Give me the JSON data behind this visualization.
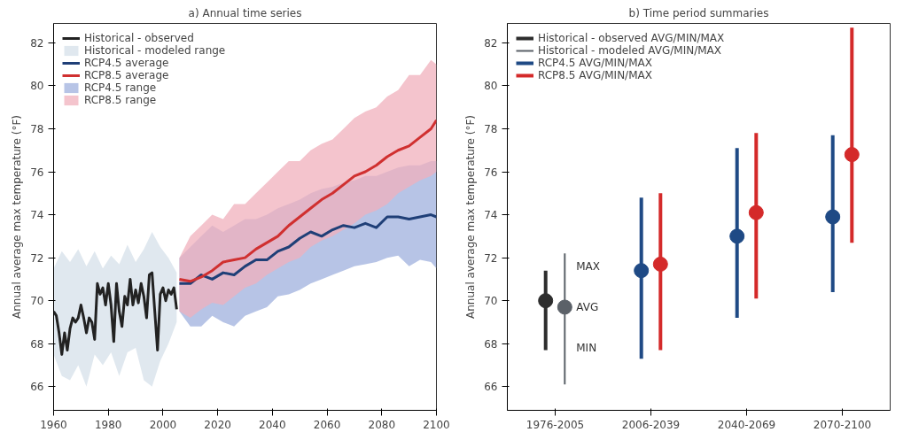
{
  "chart_data": [
    {
      "type": "line",
      "title": "a) Annual time series",
      "ylabel": "Annual average max temperature (°F)",
      "xlim": [
        1960,
        2100
      ],
      "xticks": [
        1960,
        1980,
        2000,
        2020,
        2040,
        2060,
        2080,
        2100
      ],
      "ylim": [
        64.9,
        82.9
      ],
      "yticks": [
        66,
        68,
        70,
        72,
        74,
        76,
        78,
        80,
        82
      ],
      "grid": false,
      "legend": "top left",
      "series": [
        {
          "name": "Historical - observed",
          "type": "line",
          "color": "#222222",
          "x": [
            1960,
            1961,
            1962,
            1963,
            1964,
            1965,
            1966,
            1967,
            1968,
            1969,
            1970,
            1971,
            1972,
            1973,
            1974,
            1975,
            1976,
            1977,
            1978,
            1979,
            1980,
            1981,
            1982,
            1983,
            1984,
            1985,
            1986,
            1987,
            1988,
            1989,
            1990,
            1991,
            1992,
            1993,
            1994,
            1995,
            1996,
            1997,
            1998,
            1999,
            2000,
            2001,
            2002,
            2003,
            2004,
            2005
          ],
          "values": [
            69.5,
            69.3,
            68.5,
            67.5,
            68.5,
            67.7,
            68.7,
            69.2,
            69.0,
            69.2,
            69.8,
            69.2,
            68.5,
            69.2,
            69.0,
            68.2,
            70.8,
            70.3,
            70.6,
            69.8,
            70.8,
            69.8,
            68.1,
            70.8,
            69.5,
            68.8,
            70.2,
            69.8,
            71.0,
            69.8,
            70.5,
            69.9,
            70.8,
            70.2,
            69.2,
            71.2,
            71.3,
            69.5,
            67.7,
            70.3,
            70.6,
            70.0,
            70.5,
            70.3,
            70.6,
            69.6
          ]
        },
        {
          "name": "Historical - modeled range",
          "type": "area",
          "color": "#d6e0ea",
          "x": [
            1960,
            1963,
            1966,
            1969,
            1972,
            1975,
            1978,
            1981,
            1984,
            1987,
            1990,
            1993,
            1996,
            1999,
            2002,
            2005
          ],
          "values": [
            null,
            null,
            null,
            null,
            null,
            null,
            null,
            null,
            null,
            null,
            null,
            null,
            null,
            null,
            null,
            null
          ],
          "lower": [
            67.5,
            66.5,
            66.3,
            67.0,
            66.0,
            67.5,
            67.0,
            67.6,
            66.5,
            67.6,
            67.8,
            66.3,
            66.0,
            67.2,
            68.0,
            69.0
          ],
          "upper": [
            71.5,
            72.3,
            71.8,
            72.4,
            71.6,
            72.3,
            71.5,
            72.1,
            71.7,
            72.6,
            71.8,
            72.4,
            73.2,
            72.5,
            72.0,
            71.3
          ]
        },
        {
          "name": "RCP4.5 average",
          "type": "line",
          "color": "#1f3f77",
          "x": [
            2006,
            2010,
            2014,
            2018,
            2022,
            2026,
            2030,
            2034,
            2038,
            2042,
            2046,
            2050,
            2054,
            2058,
            2062,
            2066,
            2070,
            2074,
            2078,
            2082,
            2086,
            2090,
            2094,
            2098,
            2100
          ],
          "values": [
            70.8,
            70.8,
            71.2,
            71.0,
            71.3,
            71.2,
            71.6,
            71.9,
            71.9,
            72.3,
            72.5,
            72.9,
            73.2,
            73.0,
            73.3,
            73.5,
            73.4,
            73.6,
            73.4,
            73.9,
            73.9,
            73.8,
            73.9,
            74.0,
            73.9
          ]
        },
        {
          "name": "RCP8.5 average",
          "type": "line",
          "color": "#d03030",
          "x": [
            2006,
            2010,
            2014,
            2018,
            2022,
            2026,
            2030,
            2034,
            2038,
            2042,
            2046,
            2050,
            2054,
            2058,
            2062,
            2066,
            2070,
            2074,
            2078,
            2082,
            2086,
            2090,
            2094,
            2098,
            2100
          ],
          "values": [
            71.0,
            70.9,
            71.1,
            71.4,
            71.8,
            71.9,
            72.0,
            72.4,
            72.7,
            73.0,
            73.5,
            73.9,
            74.3,
            74.7,
            75.0,
            75.4,
            75.8,
            76.0,
            76.3,
            76.7,
            77.0,
            77.2,
            77.6,
            78.0,
            78.4
          ]
        },
        {
          "name": "RCP4.5 range",
          "type": "area",
          "color": "#9fb0dd",
          "x": [
            2006,
            2010,
            2014,
            2018,
            2022,
            2026,
            2030,
            2034,
            2038,
            2042,
            2046,
            2050,
            2054,
            2058,
            2062,
            2066,
            2070,
            2074,
            2078,
            2082,
            2086,
            2090,
            2094,
            2098,
            2100
          ],
          "values": [
            null,
            null,
            null,
            null,
            null,
            null,
            null,
            null,
            null,
            null,
            null,
            null,
            null,
            null,
            null,
            null,
            null,
            null,
            null,
            null,
            null,
            null,
            null,
            null,
            null
          ],
          "lower": [
            69.5,
            68.8,
            68.8,
            69.3,
            69.0,
            68.8,
            69.3,
            69.5,
            69.7,
            70.2,
            70.3,
            70.5,
            70.8,
            71.0,
            71.2,
            71.4,
            71.6,
            71.7,
            71.8,
            72.0,
            72.1,
            71.6,
            71.9,
            71.8,
            71.5
          ],
          "upper": [
            72.0,
            72.5,
            73.0,
            73.5,
            73.2,
            73.5,
            73.8,
            73.8,
            74.0,
            74.3,
            74.5,
            74.7,
            75.0,
            75.2,
            75.3,
            75.5,
            75.6,
            75.8,
            75.8,
            76.0,
            76.2,
            76.3,
            76.3,
            76.5,
            76.5
          ]
        },
        {
          "name": "RCP8.5 range",
          "type": "area",
          "color": "#f0b0bc",
          "x": [
            2006,
            2010,
            2014,
            2018,
            2022,
            2026,
            2030,
            2034,
            2038,
            2042,
            2046,
            2050,
            2054,
            2058,
            2062,
            2066,
            2070,
            2074,
            2078,
            2082,
            2086,
            2090,
            2094,
            2098,
            2100
          ],
          "values": [
            null,
            null,
            null,
            null,
            null,
            null,
            null,
            null,
            null,
            null,
            null,
            null,
            null,
            null,
            null,
            null,
            null,
            null,
            null,
            null,
            null,
            null,
            null,
            null,
            null
          ],
          "lower": [
            69.5,
            69.2,
            69.6,
            69.9,
            69.8,
            70.2,
            70.6,
            70.8,
            71.2,
            71.5,
            71.8,
            72.0,
            72.5,
            72.8,
            73.0,
            73.3,
            73.6,
            74.0,
            74.2,
            74.5,
            75.0,
            75.3,
            75.6,
            75.8,
            76.0
          ],
          "upper": [
            72.0,
            73.0,
            73.5,
            74.0,
            73.8,
            74.5,
            74.5,
            75.0,
            75.5,
            76.0,
            76.5,
            76.5,
            77.0,
            77.3,
            77.5,
            78.0,
            78.5,
            78.8,
            79.0,
            79.5,
            79.8,
            80.5,
            80.5,
            81.2,
            81.0
          ]
        }
      ]
    },
    {
      "type": "scatter",
      "title": "b) Time period summaries",
      "ylabel": "Annual average max temperature (°F)",
      "categories": [
        "1976-2005",
        "2006-2039",
        "2040-2069",
        "2070-2100"
      ],
      "ylim": [
        64.9,
        82.9
      ],
      "yticks": [
        66,
        68,
        70,
        72,
        74,
        76,
        78,
        80,
        82
      ],
      "grid": false,
      "legend": "top left",
      "marker": "circle",
      "series": [
        {
          "name": "Historical - observed AVG/MIN/MAX",
          "color": "#2d2d2d",
          "values": [
            70.0,
            null,
            null,
            null
          ],
          "errors": [
            [
              67.7,
              71.4
            ],
            null,
            null,
            null
          ]
        },
        {
          "name": "Historical - modeled AVG/MIN/MAX",
          "color": "#5b6168",
          "values": [
            69.7,
            null,
            null,
            null
          ],
          "errors": [
            [
              66.1,
              72.2
            ],
            null,
            null,
            null
          ]
        },
        {
          "name": "RCP4.5 AVG/MIN/MAX",
          "color": "#1f4a85",
          "values": [
            null,
            71.4,
            73.0,
            73.9
          ],
          "errors": [
            null,
            [
              67.3,
              74.8
            ],
            [
              69.2,
              77.1
            ],
            [
              70.4,
              77.7
            ]
          ]
        },
        {
          "name": "RCP8.5 AVG/MIN/MAX",
          "color": "#d42a2a",
          "values": [
            null,
            71.7,
            74.1,
            76.8
          ],
          "errors": [
            null,
            [
              67.7,
              75.0
            ],
            [
              70.1,
              77.8
            ],
            [
              72.7,
              82.7
            ]
          ]
        }
      ],
      "annotations": [
        "MAX",
        "AVG",
        "MIN"
      ]
    }
  ]
}
